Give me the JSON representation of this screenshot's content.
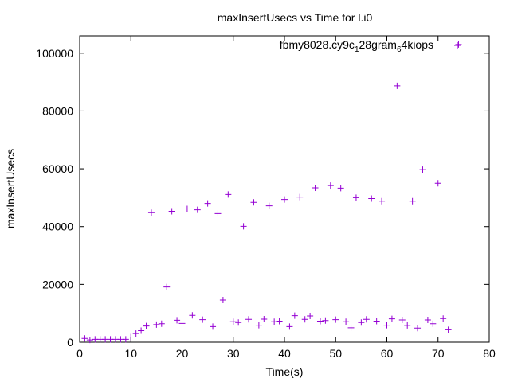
{
  "chart_data": {
    "type": "scatter",
    "title": "maxInsertUsecs vs Time for l.i0",
    "xlabel": "Time(s)",
    "ylabel": "maxInsertUsecs",
    "xlim": [
      0,
      80
    ],
    "ylim": [
      0,
      106000
    ],
    "xticks": [
      0,
      10,
      20,
      30,
      40,
      50,
      60,
      70,
      80
    ],
    "yticks": [
      0,
      20000,
      40000,
      60000,
      80000,
      100000
    ],
    "grid": false,
    "legend_position": "top-right",
    "marker": "plus",
    "series": [
      {
        "name": "fbmy8028.cy9c1_28gram64kiops",
        "legend_parts": [
          {
            "text": "fbmy8028.cy9c",
            "sub": false
          },
          {
            "text": "1",
            "sub": true
          },
          {
            "text": "28gram",
            "sub": false
          },
          {
            "text": "6",
            "sub": true
          },
          {
            "text": "4kiops",
            "sub": false
          }
        ],
        "color": "#9400d3",
        "points": [
          [
            1,
            1300
          ],
          [
            2,
            800
          ],
          [
            3,
            1000
          ],
          [
            4,
            1000
          ],
          [
            5,
            1000
          ],
          [
            6,
            1000
          ],
          [
            7,
            1000
          ],
          [
            8,
            1000
          ],
          [
            9,
            1000
          ],
          [
            10,
            1800
          ],
          [
            11,
            3000
          ],
          [
            12,
            4000
          ],
          [
            13,
            5600
          ],
          [
            14,
            44800
          ],
          [
            15,
            6100
          ],
          [
            16,
            6400
          ],
          [
            17,
            19100
          ],
          [
            18,
            45300
          ],
          [
            19,
            7600
          ],
          [
            20,
            6500
          ],
          [
            21,
            46100
          ],
          [
            22,
            9300
          ],
          [
            23,
            45800
          ],
          [
            24,
            7800
          ],
          [
            25,
            48000
          ],
          [
            26,
            5400
          ],
          [
            27,
            44500
          ],
          [
            28,
            14600
          ],
          [
            29,
            51100
          ],
          [
            30,
            7100
          ],
          [
            31,
            6800
          ],
          [
            32,
            40100
          ],
          [
            33,
            7900
          ],
          [
            34,
            48400
          ],
          [
            35,
            5900
          ],
          [
            36,
            8000
          ],
          [
            37,
            47200
          ],
          [
            38,
            7100
          ],
          [
            39,
            7300
          ],
          [
            40,
            49400
          ],
          [
            41,
            5400
          ],
          [
            42,
            9200
          ],
          [
            43,
            50200
          ],
          [
            44,
            7900
          ],
          [
            45,
            9100
          ],
          [
            46,
            53400
          ],
          [
            47,
            7300
          ],
          [
            48,
            7500
          ],
          [
            49,
            54200
          ],
          [
            50,
            7800
          ],
          [
            51,
            53300
          ],
          [
            52,
            7100
          ],
          [
            53,
            5000
          ],
          [
            54,
            50000
          ],
          [
            55,
            6800
          ],
          [
            56,
            7900
          ],
          [
            57,
            49700
          ],
          [
            58,
            7300
          ],
          [
            59,
            48800
          ],
          [
            60,
            5900
          ],
          [
            61,
            8100
          ],
          [
            62,
            88700
          ],
          [
            63,
            7700
          ],
          [
            64,
            5800
          ],
          [
            65,
            48800
          ],
          [
            66,
            4900
          ],
          [
            67,
            59700
          ],
          [
            68,
            7700
          ],
          [
            69,
            6400
          ],
          [
            70,
            55000
          ],
          [
            71,
            8200
          ],
          [
            72,
            4300
          ],
          [
            74,
            103000
          ]
        ]
      }
    ]
  }
}
